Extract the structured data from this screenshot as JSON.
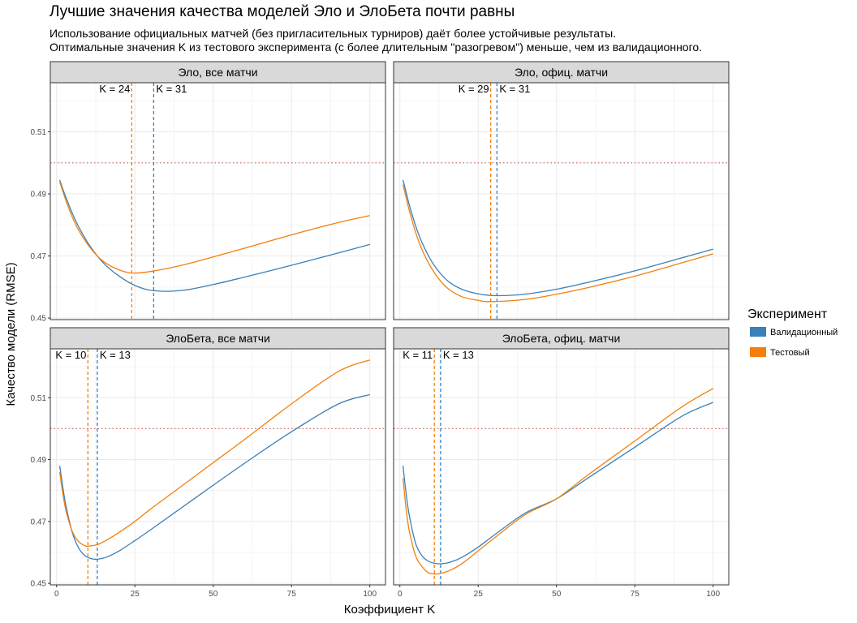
{
  "title": "Лучшие значения качества моделей Эло и ЭлоБета почти равны",
  "subtitle": [
    "Использование официальных матчей (без пригласительных турниров) даёт более устойчивые результаты.",
    "Оптимальные значения K из тестового эксперимента (с более длительным \"разогревом\") меньше, чем из валидационного."
  ],
  "colors": {
    "validation": "#3a80b9",
    "test": "#f57f0a",
    "reference": "#d46b6b",
    "strip_bg": "#d9d9d9"
  },
  "chart_data": {
    "type": "line",
    "xlabel": "Коэффициент K",
    "ylabel": "Качество модели (RMSE)",
    "x_ticks": [
      0,
      25,
      50,
      75,
      100
    ],
    "xlim": [
      -2,
      105
    ],
    "y_ticks": [
      0.45,
      0.47,
      0.49,
      0.51
    ],
    "ylim": [
      0.4495,
      0.5258
    ],
    "reference_line_y": 0.5,
    "legend": {
      "title": "Эксперимент",
      "position": "right",
      "entries": [
        {
          "name": "Валидационный",
          "color_key": "validation"
        },
        {
          "name": "Тестовый",
          "color_key": "test"
        }
      ]
    },
    "panels": [
      {
        "title": "Эло, все матчи",
        "series": [
          {
            "name": "Валидационный",
            "color_key": "validation",
            "best_k": 31,
            "label": "K = 31",
            "x": [
              1,
              2,
              3,
              5,
              7,
              10,
              13,
              16,
              20,
              25,
              31,
              40,
              50,
              60,
              75,
              90,
              100
            ],
            "y": [
              0.4945,
              0.4915,
              0.4888,
              0.4838,
              0.4795,
              0.4742,
              0.47,
              0.4667,
              0.4635,
              0.4605,
              0.4588,
              0.4589,
              0.4608,
              0.4632,
              0.467,
              0.471,
              0.4737
            ]
          },
          {
            "name": "Тестовый",
            "color_key": "test",
            "best_k": 24,
            "label": "K = 24",
            "x": [
              1,
              2,
              3,
              5,
              7,
              10,
              13,
              16,
              20,
              24,
              30,
              40,
              50,
              60,
              75,
              90,
              100
            ],
            "y": [
              0.4938,
              0.4908,
              0.4878,
              0.4826,
              0.4784,
              0.4736,
              0.47,
              0.4675,
              0.4655,
              0.4645,
              0.465,
              0.467,
              0.4697,
              0.4725,
              0.4768,
              0.4808,
              0.483
            ]
          }
        ]
      },
      {
        "title": "Эло, офиц. матчи",
        "series": [
          {
            "name": "Валидационный",
            "color_key": "validation",
            "best_k": 31,
            "label": "K = 31",
            "x": [
              1,
              2,
              3,
              5,
              7,
              10,
              13,
              16,
              20,
              25,
              31,
              40,
              50,
              60,
              75,
              90,
              100
            ],
            "y": [
              0.4945,
              0.4905,
              0.4865,
              0.4798,
              0.4745,
              0.4685,
              0.4643,
              0.4614,
              0.4592,
              0.4578,
              0.4572,
              0.4577,
              0.4593,
              0.4615,
              0.4652,
              0.4694,
              0.4722
            ]
          },
          {
            "name": "Тестовый",
            "color_key": "test",
            "best_k": 29,
            "label": "K = 29",
            "x": [
              1,
              2,
              3,
              5,
              7,
              10,
              13,
              16,
              20,
              25,
              29,
              40,
              50,
              60,
              75,
              90,
              100
            ],
            "y": [
              0.493,
              0.4888,
              0.4847,
              0.4777,
              0.4722,
              0.4662,
              0.4619,
              0.459,
              0.4568,
              0.4557,
              0.4553,
              0.456,
              0.4577,
              0.4598,
              0.4635,
              0.4678,
              0.4707
            ]
          }
        ]
      },
      {
        "title": "ЭлоБета, все матчи",
        "series": [
          {
            "name": "Валидационный",
            "color_key": "validation",
            "best_k": 13,
            "label": "K = 13",
            "x": [
              1,
              2,
              3,
              5,
              7,
              9,
              11,
              13,
              16,
              20,
              25,
              30,
              40,
              50,
              60,
              75,
              90,
              100
            ],
            "y": [
              0.488,
              0.481,
              0.475,
              0.4665,
              0.4615,
              0.459,
              0.458,
              0.4578,
              0.4585,
              0.4605,
              0.4638,
              0.4673,
              0.4745,
              0.4817,
              0.4888,
              0.499,
              0.508,
              0.511
            ]
          },
          {
            "name": "Тестовый",
            "color_key": "test",
            "best_k": 10,
            "label": "K = 10",
            "x": [
              1,
              2,
              3,
              5,
              7,
              9,
              10,
              13,
              16,
              20,
              25,
              30,
              40,
              50,
              60,
              75,
              90,
              100
            ],
            "y": [
              0.486,
              0.479,
              0.4735,
              0.4668,
              0.4635,
              0.4622,
              0.462,
              0.4625,
              0.464,
              0.4665,
              0.47,
              0.474,
              0.4815,
              0.489,
              0.4965,
              0.508,
              0.5185,
              0.5222
            ]
          }
        ]
      },
      {
        "title": "ЭлоБета, офиц. матчи",
        "series": [
          {
            "name": "Валидационный",
            "color_key": "validation",
            "best_k": 13,
            "label": "K = 13",
            "x": [
              1,
              2,
              3,
              5,
              7,
              9,
              11,
              13,
              16,
              20,
              25,
              30,
              40,
              50,
              60,
              75,
              90,
              100
            ],
            "y": [
              0.488,
              0.479,
              0.472,
              0.463,
              0.459,
              0.4572,
              0.4565,
              0.4563,
              0.4568,
              0.4585,
              0.4617,
              0.4655,
              0.4727,
              0.4773,
              0.484,
              0.494,
              0.504,
              0.5085
            ]
          },
          {
            "name": "Тестовый",
            "color_key": "test",
            "best_k": 11,
            "label": "K = 11",
            "x": [
              1,
              2,
              3,
              5,
              7,
              9,
              11,
              13,
              16,
              20,
              25,
              30,
              40,
              50,
              60,
              75,
              90,
              100
            ],
            "y": [
              0.484,
              0.474,
              0.467,
              0.459,
              0.4555,
              0.4535,
              0.453,
              0.4532,
              0.4542,
              0.4565,
              0.4605,
              0.4645,
              0.4722,
              0.4773,
              0.485,
              0.496,
              0.507,
              0.513
            ]
          }
        ]
      }
    ]
  }
}
